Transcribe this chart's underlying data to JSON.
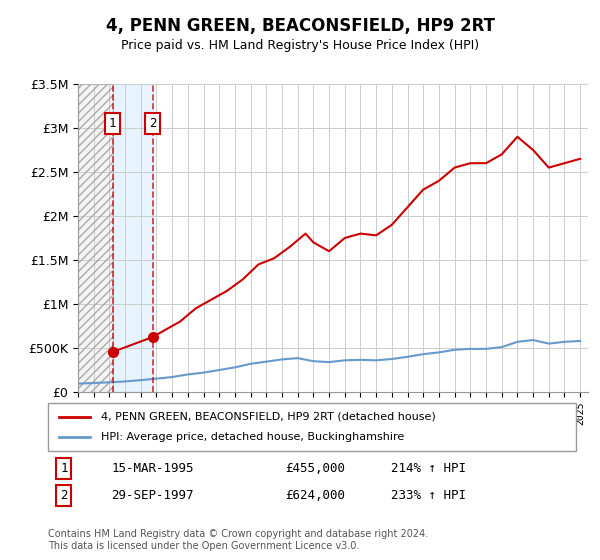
{
  "title": "4, PENN GREEN, BEACONSFIELD, HP9 2RT",
  "subtitle": "Price paid vs. HM Land Registry's House Price Index (HPI)",
  "legend_line1": "4, PENN GREEN, BEACONSFIELD, HP9 2RT (detached house)",
  "legend_line2": "HPI: Average price, detached house, Buckinghamshire",
  "sale1_label": "1",
  "sale1_date": "15-MAR-1995",
  "sale1_price": 455000,
  "sale1_year": 1995.21,
  "sale2_label": "2",
  "sale2_date": "29-SEP-1997",
  "sale2_price": 624000,
  "sale2_year": 1997.75,
  "table_row1": "1    15-MAR-1995    £455,000    214% ↑ HPI",
  "table_row2": "2    29-SEP-1997    £624,000    233% ↑ HPI",
  "footnote": "Contains HM Land Registry data © Crown copyright and database right 2024.\nThis data is licensed under the Open Government Licence v3.0.",
  "hpi_color": "#6699cc",
  "price_color": "#cc0000",
  "hatch_color": "#cccccc",
  "shade1_color": "#ddeeff",
  "shade2_color": "#ddeeff",
  "ylim": [
    0,
    3500000
  ],
  "yticks": [
    0,
    500000,
    1000000,
    1500000,
    2000000,
    2500000,
    3000000,
    3500000
  ],
  "ytick_labels": [
    "£0",
    "£500K",
    "£1M",
    "£1.5M",
    "£2M",
    "£2.5M",
    "£3M",
    "£3.5M"
  ],
  "hpi_years": [
    1993,
    1994,
    1995,
    1996,
    1997,
    1998,
    1999,
    2000,
    2001,
    2002,
    2003,
    2004,
    2005,
    2006,
    2007,
    2008,
    2009,
    2010,
    2011,
    2012,
    2013,
    2014,
    2015,
    2016,
    2017,
    2018,
    2019,
    2020,
    2021,
    2022,
    2023,
    2024,
    2025
  ],
  "hpi_values": [
    95000,
    102000,
    110000,
    120000,
    135000,
    152000,
    170000,
    200000,
    220000,
    250000,
    280000,
    320000,
    345000,
    370000,
    385000,
    350000,
    340000,
    360000,
    365000,
    360000,
    375000,
    400000,
    430000,
    450000,
    480000,
    490000,
    490000,
    510000,
    570000,
    590000,
    550000,
    570000,
    580000
  ],
  "price_years": [
    1995.21,
    1997.75,
    1998.5,
    1999.5,
    2000.5,
    2001.5,
    2002.5,
    2003.5,
    2004.5,
    2005.5,
    2006.5,
    2007.5,
    2008.0,
    2009.0,
    2010.0,
    2011.0,
    2012.0,
    2013.0,
    2014.0,
    2015.0,
    2016.0,
    2017.0,
    2018.0,
    2019.0,
    2020.0,
    2021.0,
    2022.0,
    2023.0,
    2024.0,
    2025.0
  ],
  "price_values": [
    455000,
    624000,
    700000,
    800000,
    950000,
    1050000,
    1150000,
    1280000,
    1450000,
    1520000,
    1650000,
    1800000,
    1700000,
    1600000,
    1750000,
    1800000,
    1780000,
    1900000,
    2100000,
    2300000,
    2400000,
    2550000,
    2600000,
    2600000,
    2700000,
    2900000,
    2750000,
    2550000,
    2600000,
    2650000
  ]
}
